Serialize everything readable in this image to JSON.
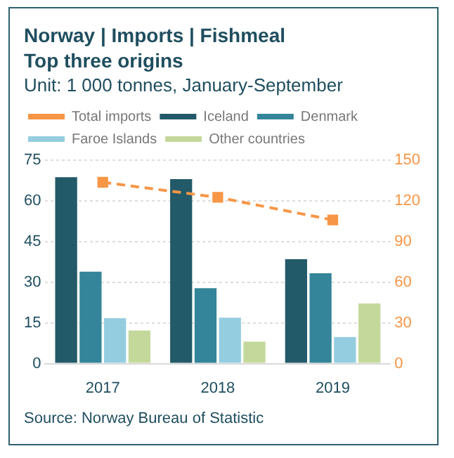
{
  "chart_data": {
    "type": "bar",
    "title": "Norway | Imports | Fishmeal",
    "subtitle": "Top three origins\nUnit: 1 000 tonnes, January-September",
    "categories": [
      "2017",
      "2018",
      "2019"
    ],
    "series": [
      {
        "name": "Iceland",
        "color": "#235a69",
        "values": [
          68.7,
          68.0,
          38.5
        ]
      },
      {
        "name": "Denmark",
        "color": "#348599",
        "values": [
          33.9,
          27.8,
          33.3
        ]
      },
      {
        "name": "Faroe Islands",
        "color": "#95cde0",
        "values": [
          16.7,
          16.9,
          9.8
        ]
      },
      {
        "name": "Other countries",
        "color": "#c5d89c",
        "values": [
          12.2,
          8.1,
          22.2
        ]
      },
      {
        "name": "Total imports",
        "type": "line",
        "axis": "y2",
        "color": "#f79646",
        "values": [
          133.7,
          122.6,
          105.9
        ]
      }
    ],
    "ylim": [
      0,
      75
    ],
    "yticks": [
      0,
      15,
      30,
      45,
      60,
      75
    ],
    "y2lim": [
      0,
      150
    ],
    "y2ticks": [
      0,
      30,
      60,
      90,
      120,
      150
    ],
    "grid": "y",
    "legend": "top",
    "marker": "square",
    "line_style": "dashed",
    "annotations": [
      "Source: Norway Bureau of Statistic"
    ]
  }
}
